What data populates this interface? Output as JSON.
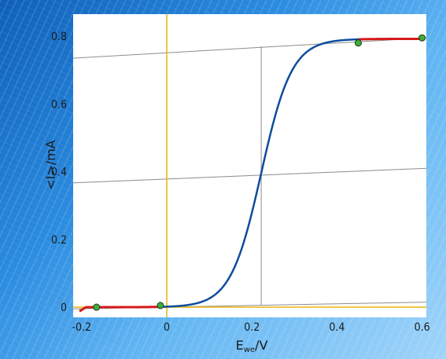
{
  "chart_data": {
    "type": "line",
    "xlabel": "E",
    "xlabel_sub": "we",
    "xlabel_unit": "/V",
    "ylabel": "<I>/mA",
    "xlim": [
      -0.22,
      0.61
    ],
    "ylim": [
      -0.03,
      0.865
    ],
    "x_ticks": [
      -0.2,
      0,
      0.2,
      0.4,
      0.6
    ],
    "x_tick_labels": [
      "-0.2",
      "0",
      "0.2",
      "0.4",
      "0.6"
    ],
    "y_ticks": [
      0,
      0.2,
      0.4,
      0.6,
      0.8
    ],
    "y_tick_labels": [
      "0",
      "0.2",
      "0.4",
      "0.6",
      "0.8"
    ],
    "wave": {
      "x_start": -0.205,
      "x_end": 0.6,
      "e_half": 0.222,
      "i_max": 0.792,
      "slope": 0.036
    },
    "baseline_fit": {
      "x_from": -0.21,
      "x_to": -0.02
    },
    "plateau_fit": {
      "x_from": 0.45,
      "x_to": 0.6
    },
    "fit_points": [
      {
        "x": -0.165,
        "y": 0.0
      },
      {
        "x": -0.015,
        "y": 0.005
      },
      {
        "x": 0.45,
        "y": 0.78
      },
      {
        "x": 0.6,
        "y": 0.795
      }
    ],
    "upper_line": {
      "y_at_xmin": 0.735,
      "y_at_xmax": 0.795
    },
    "mid_line": {
      "y_at_xmin": 0.367,
      "y_at_xmax": 0.41
    },
    "lower_line": {
      "y_at_xmin": -0.005,
      "y_at_xmax": 0.015
    },
    "e_half_marker": {
      "x": 0.222,
      "y_bottom": 0.005,
      "y_top": 0.77
    },
    "zero_crosshair": {
      "x": 0,
      "y": 0
    },
    "colors": {
      "curve": "#0d4d9e",
      "fit_segments": "#d61a1a",
      "crosshair": "#e8b50c",
      "construction_lines": "#8c8c8c",
      "fit_point_fill": "#3fae3a",
      "fit_point_stroke": "#1a3a1a",
      "plot_background": "#ffffff"
    }
  }
}
